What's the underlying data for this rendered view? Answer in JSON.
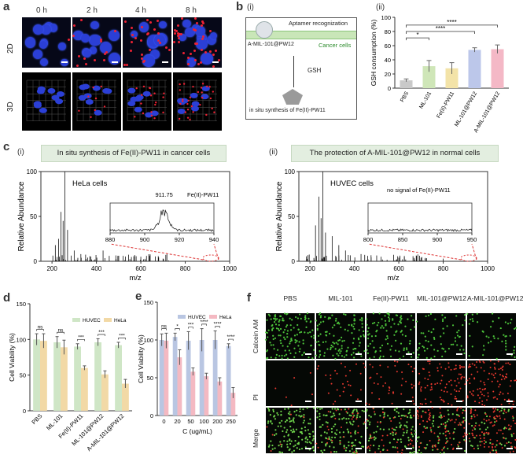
{
  "panel_a": {
    "label": "a",
    "timepoints": [
      "0 h",
      "2 h",
      "4 h",
      "8 h"
    ],
    "rows": [
      "2D",
      "3D"
    ]
  },
  "panel_b": {
    "label": "b",
    "sub_i": "(i)",
    "sub_ii": "(ii)",
    "schematic": {
      "aptamer": "Aptamer recognization",
      "nanoparticle": "A-MIL-101@PW12",
      "cancer_cells": "Cancer cells",
      "gsh": "GSH",
      "synthesis": "in situ synthesis of Fe(II)-PW11"
    }
  },
  "panel_c": {
    "label": "c",
    "sub_i": "(i)",
    "sub_ii": "(ii)",
    "banner_i": "In situ synthesis of Fe(II)-PW11 in cancer cells",
    "banner_ii": "The protection of A-MIL-101@PW12 in normal cells",
    "cell_i": "HeLa cells",
    "cell_ii": "HUVEC cells",
    "peak_label": "911.75",
    "species_label": "Fe(II)-PW11",
    "no_signal": "no signal of Fe(II)-PW11"
  },
  "panel_d": {
    "label": "d"
  },
  "panel_e": {
    "label": "e"
  },
  "panel_f": {
    "label": "f",
    "columns": [
      "PBS",
      "MIL-101",
      "Fe(II)-PW11",
      "MIL-101@PW12",
      "A-MIL-101@PW12"
    ],
    "rows": [
      "Calcein AM",
      "PI",
      "Merge"
    ]
  },
  "colors": {
    "huvec": "#b9c6e2",
    "hela": "#f4b9c2",
    "hela_d": "#f2d9a6",
    "huvec_d": "#cfe6c6",
    "banner": "#e3eee0"
  },
  "chart_data": [
    {
      "id": "b_ii",
      "type": "bar",
      "ylabel": "GSH consumption (%)",
      "ylim": [
        0,
        100
      ],
      "yticks": [
        0,
        20,
        40,
        60,
        80,
        100
      ],
      "categories": [
        "PBS",
        "ML-101",
        "Fe(II)-PW11",
        "ML-101@PW12",
        "A-MIL-101@PW12"
      ],
      "values": [
        11,
        31,
        28,
        54,
        55
      ],
      "errors": [
        2,
        8,
        8,
        3,
        6
      ],
      "bar_colors": [
        "#c9c9c9",
        "#cfe6b8",
        "#f3e3a8",
        "#bcc7ea",
        "#f4b8c6"
      ],
      "significance": [
        "*",
        "****",
        "****"
      ]
    },
    {
      "id": "c_i",
      "type": "line",
      "xlabel": "m/z",
      "ylabel": "Relative Abundance",
      "xlim": [
        150,
        1000
      ],
      "ylim": [
        0,
        100
      ],
      "xticks": [
        200,
        400,
        600,
        800,
        1000
      ],
      "yticks": [
        0,
        50,
        100
      ],
      "inset_xticks": [
        880,
        900,
        920,
        940
      ]
    },
    {
      "id": "c_ii",
      "type": "line",
      "xlabel": "m/z",
      "ylabel": "Relative Abundance",
      "xlim": [
        150,
        1000
      ],
      "ylim": [
        0,
        100
      ],
      "xticks": [
        200,
        400,
        600,
        800,
        1000
      ],
      "yticks": [
        0,
        50,
        100
      ],
      "inset_xticks": [
        800,
        850,
        900,
        950
      ]
    },
    {
      "id": "d",
      "type": "bar",
      "ylabel": "Cell Viability (%)",
      "ylim": [
        0,
        150
      ],
      "yticks": [
        0,
        50,
        100,
        150
      ],
      "categories": [
        "PBS",
        "ML-101",
        "Fe(II)-PW11",
        "ML-101@PW12",
        "A-MIL-101@PW12"
      ],
      "series": [
        {
          "name": "HUVEC",
          "values": [
            100,
            96,
            90,
            96,
            92
          ],
          "errors": [
            8,
            8,
            4,
            5,
            4
          ]
        },
        {
          "name": "HeLa",
          "values": [
            98,
            89,
            60,
            51,
            38
          ],
          "errors": [
            10,
            10,
            3,
            5,
            6
          ]
        }
      ],
      "significance": [
        "ns",
        "ns",
        "***",
        "***",
        "***"
      ]
    },
    {
      "id": "e",
      "type": "bar",
      "xlabel": "C (ug/mL)",
      "ylabel": "Cell Viability (%)",
      "ylim": [
        0,
        150
      ],
      "yticks": [
        0,
        50,
        100,
        150
      ],
      "categories": [
        "0",
        "20",
        "50",
        "100",
        "200",
        "250"
      ],
      "series": [
        {
          "name": "HUVEC",
          "values": [
            100,
            104,
            99,
            100,
            100,
            92
          ],
          "errors": [
            8,
            5,
            12,
            15,
            12,
            3
          ]
        },
        {
          "name": "HeLa",
          "values": [
            99,
            77,
            58,
            52,
            45,
            30
          ],
          "errors": [
            10,
            10,
            5,
            4,
            5,
            7
          ]
        }
      ],
      "significance": [
        "ns",
        "*",
        "***",
        "****",
        "****",
        "****"
      ]
    }
  ]
}
